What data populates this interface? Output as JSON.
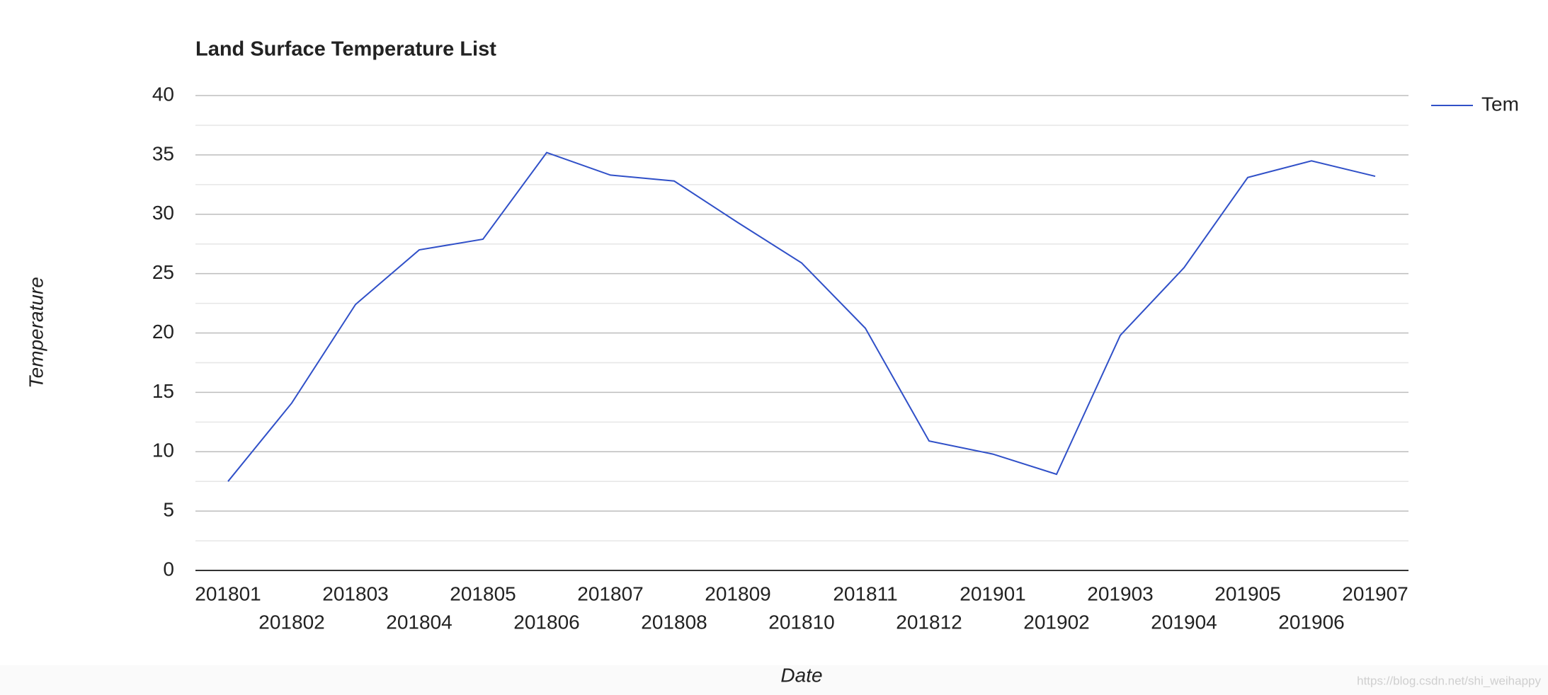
{
  "chart_data": {
    "type": "line",
    "title": "Land Surface Temperature List",
    "x_label": "Date",
    "y_label": "Temperature",
    "categories": [
      "201801",
      "201802",
      "201803",
      "201804",
      "201805",
      "201806",
      "201807",
      "201808",
      "201809",
      "201810",
      "201811",
      "201812",
      "201901",
      "201902",
      "201903",
      "201904",
      "201905",
      "201906",
      "201907"
    ],
    "series": [
      {
        "name": "Tem",
        "color": "#3050c8",
        "values": [
          7.5,
          14.1,
          22.4,
          27.0,
          27.9,
          35.2,
          33.3,
          32.8,
          29.3,
          25.9,
          20.4,
          10.9,
          9.8,
          8.1,
          19.8,
          25.5,
          33.1,
          34.5,
          33.2
        ]
      }
    ],
    "ylim": [
      0,
      40
    ],
    "yticks": [
      0,
      5,
      10,
      15,
      20,
      25,
      30,
      35,
      40
    ],
    "yticks_minor": [
      2.5,
      7.5,
      12.5,
      17.5,
      22.5,
      27.5,
      32.5,
      37.5
    ],
    "grid": true,
    "legend": "right",
    "watermark": "https://blog.csdn.net/shi_weihappy"
  }
}
